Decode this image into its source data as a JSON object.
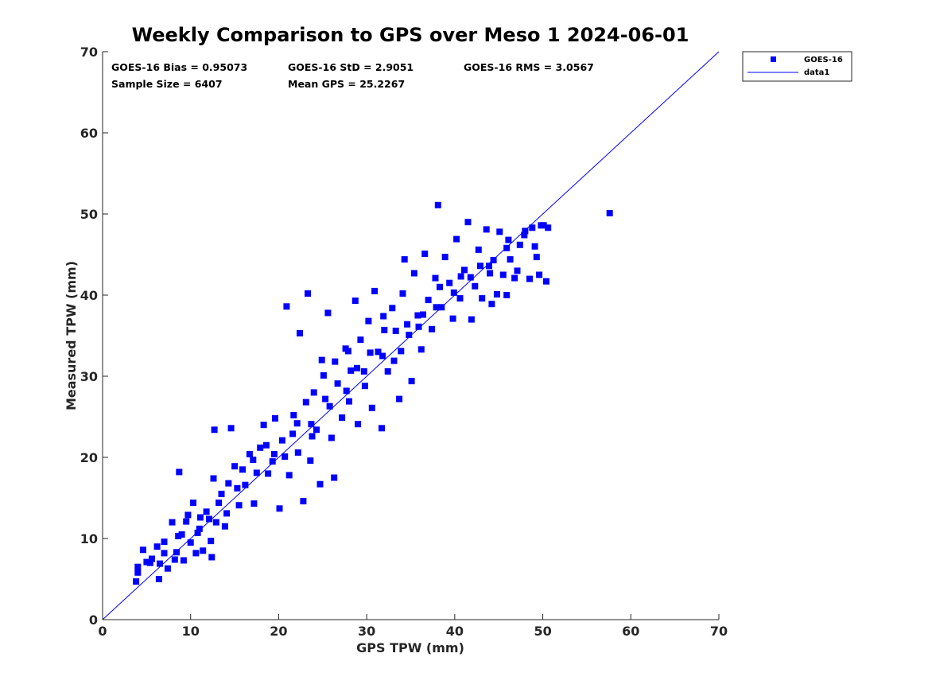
{
  "chart_data": {
    "type": "scatter",
    "title": "Weekly Comparison to GPS over Meso 1 2024-06-01",
    "xlabel": "GPS TPW (mm)",
    "ylabel": "Measured TPW (mm)",
    "xlim": [
      0,
      70
    ],
    "ylim": [
      0,
      70
    ],
    "xticks": [
      "0",
      "10",
      "20",
      "30",
      "40",
      "50",
      "60",
      "70"
    ],
    "yticks": [
      "0",
      "10",
      "20",
      "30",
      "40",
      "50",
      "60",
      "70"
    ],
    "grid": false,
    "legend_position": "outside-top-right",
    "stats": {
      "bias": "GOES-16 Bias = 0.95073",
      "std": "GOES-16 StD = 2.9051",
      "rms": "GOES-16 RMS = 3.0567",
      "sample_size": "Sample Size = 6407",
      "mean_gps": "Mean GPS = 25.2267"
    },
    "series": [
      {
        "name": "GOES-16",
        "kind": "scatter",
        "marker": "square",
        "color": "#0000ff",
        "points": [
          [
            3.8,
            4.7
          ],
          [
            4.0,
            6.5
          ],
          [
            4.0,
            5.8
          ],
          [
            4.6,
            8.6
          ],
          [
            5.0,
            7.1
          ],
          [
            5.4,
            7.0
          ],
          [
            6.2,
            9.0
          ],
          [
            6.4,
            5.0
          ],
          [
            6.5,
            6.9
          ],
          [
            7.0,
            8.2
          ],
          [
            7.4,
            6.3
          ],
          [
            7.9,
            12.0
          ],
          [
            8.4,
            8.3
          ],
          [
            8.6,
            10.3
          ],
          [
            8.7,
            18.2
          ],
          [
            9.2,
            7.3
          ],
          [
            9.5,
            12.1
          ],
          [
            10.0,
            9.5
          ],
          [
            10.3,
            14.4
          ],
          [
            10.6,
            8.2
          ],
          [
            11.0,
            11.2
          ],
          [
            11.4,
            8.5
          ],
          [
            11.8,
            13.3
          ],
          [
            12.3,
            9.7
          ],
          [
            12.4,
            7.7
          ],
          [
            12.6,
            17.4
          ],
          [
            12.7,
            23.4
          ],
          [
            12.9,
            12.0
          ],
          [
            13.5,
            15.5
          ],
          [
            13.9,
            11.5
          ],
          [
            14.3,
            16.8
          ],
          [
            14.6,
            23.6
          ],
          [
            15.0,
            18.9
          ],
          [
            15.5,
            14.1
          ],
          [
            16.2,
            16.6
          ],
          [
            16.7,
            20.4
          ],
          [
            17.2,
            14.3
          ],
          [
            17.9,
            21.2
          ],
          [
            18.3,
            24.0
          ],
          [
            18.8,
            18.0
          ],
          [
            19.3,
            19.5
          ],
          [
            19.6,
            24.8
          ],
          [
            20.1,
            13.7
          ],
          [
            20.4,
            22.1
          ],
          [
            20.9,
            38.6
          ],
          [
            21.2,
            17.8
          ],
          [
            21.7,
            25.2
          ],
          [
            22.2,
            20.6
          ],
          [
            22.4,
            35.3
          ],
          [
            22.8,
            14.6
          ],
          [
            23.1,
            26.8
          ],
          [
            23.3,
            40.2
          ],
          [
            23.6,
            19.6
          ],
          [
            24.0,
            28.0
          ],
          [
            24.3,
            23.4
          ],
          [
            24.7,
            16.7
          ],
          [
            24.9,
            32.0
          ],
          [
            25.3,
            27.2
          ],
          [
            25.6,
            37.8
          ],
          [
            26.0,
            22.4
          ],
          [
            26.3,
            17.5
          ],
          [
            26.7,
            29.1
          ],
          [
            27.2,
            24.9
          ],
          [
            27.6,
            33.4
          ],
          [
            28.0,
            26.9
          ],
          [
            28.2,
            30.7
          ],
          [
            28.7,
            39.3
          ],
          [
            29.0,
            24.1
          ],
          [
            29.3,
            34.5
          ],
          [
            29.8,
            28.8
          ],
          [
            30.2,
            36.8
          ],
          [
            30.6,
            26.1
          ],
          [
            30.9,
            40.5
          ],
          [
            31.3,
            33.0
          ],
          [
            31.7,
            23.6
          ],
          [
            32.0,
            35.7
          ],
          [
            32.4,
            30.6
          ],
          [
            32.9,
            38.4
          ],
          [
            33.1,
            31.9
          ],
          [
            33.7,
            27.2
          ],
          [
            34.1,
            40.2
          ],
          [
            34.3,
            44.4
          ],
          [
            34.8,
            35.1
          ],
          [
            35.1,
            29.4
          ],
          [
            35.4,
            42.7
          ],
          [
            35.8,
            37.5
          ],
          [
            36.2,
            33.3
          ],
          [
            36.6,
            45.1
          ],
          [
            37.0,
            39.4
          ],
          [
            37.4,
            35.8
          ],
          [
            37.8,
            42.1
          ],
          [
            38.1,
            51.1
          ],
          [
            38.5,
            38.5
          ],
          [
            38.9,
            44.7
          ],
          [
            39.4,
            41.5
          ],
          [
            39.8,
            37.1
          ],
          [
            40.2,
            46.9
          ],
          [
            40.6,
            39.6
          ],
          [
            41.1,
            43.1
          ],
          [
            41.5,
            49.0
          ],
          [
            41.9,
            37.0
          ],
          [
            42.3,
            41.1
          ],
          [
            42.7,
            45.6
          ],
          [
            43.1,
            39.6
          ],
          [
            43.6,
            48.1
          ],
          [
            44.0,
            42.7
          ],
          [
            44.4,
            44.3
          ],
          [
            44.8,
            40.1
          ],
          [
            45.1,
            47.8
          ],
          [
            45.5,
            42.5
          ],
          [
            45.9,
            40.0
          ],
          [
            46.3,
            44.4
          ],
          [
            46.8,
            42.1
          ],
          [
            47.4,
            46.2
          ],
          [
            48.0,
            47.9
          ],
          [
            48.5,
            42.0
          ],
          [
            48.8,
            48.3
          ],
          [
            49.3,
            44.7
          ],
          [
            49.6,
            42.5
          ],
          [
            50.1,
            48.6
          ],
          [
            50.4,
            41.7
          ],
          [
            50.6,
            48.3
          ],
          [
            57.6,
            50.1
          ],
          [
            5.6,
            7.5
          ],
          [
            7.0,
            9.6
          ],
          [
            9.0,
            10.5
          ],
          [
            11.1,
            12.6
          ],
          [
            13.2,
            14.4
          ],
          [
            15.3,
            16.2
          ],
          [
            17.5,
            18.1
          ],
          [
            19.5,
            20.4
          ],
          [
            21.6,
            22.9
          ],
          [
            23.7,
            24.1
          ],
          [
            25.8,
            26.3
          ],
          [
            27.7,
            28.2
          ],
          [
            29.7,
            30.6
          ],
          [
            31.8,
            32.5
          ],
          [
            33.9,
            33.1
          ],
          [
            35.9,
            36.1
          ],
          [
            37.9,
            38.5
          ],
          [
            39.9,
            40.3
          ],
          [
            41.8,
            42.2
          ],
          [
            43.9,
            43.6
          ],
          [
            45.9,
            45.8
          ],
          [
            47.9,
            47.4
          ],
          [
            49.8,
            48.6
          ],
          [
            8.2,
            7.4
          ],
          [
            9.7,
            12.9
          ],
          [
            10.8,
            10.7
          ],
          [
            12.1,
            12.4
          ],
          [
            14.1,
            13.1
          ],
          [
            15.9,
            18.5
          ],
          [
            17.1,
            19.7
          ],
          [
            18.6,
            21.5
          ],
          [
            20.7,
            20.1
          ],
          [
            22.1,
            24.2
          ],
          [
            23.8,
            22.6
          ],
          [
            25.1,
            30.1
          ],
          [
            26.4,
            31.8
          ],
          [
            27.9,
            33.1
          ],
          [
            28.9,
            31.0
          ],
          [
            30.4,
            32.9
          ],
          [
            31.9,
            37.4
          ],
          [
            33.3,
            35.6
          ],
          [
            34.6,
            36.4
          ],
          [
            36.4,
            37.6
          ],
          [
            38.3,
            41.0
          ],
          [
            40.7,
            42.3
          ],
          [
            42.9,
            43.6
          ],
          [
            44.2,
            38.9
          ],
          [
            46.1,
            46.8
          ],
          [
            47.1,
            43.0
          ],
          [
            49.1,
            46.0
          ]
        ]
      },
      {
        "name": "data1",
        "kind": "line",
        "color": "#0000ff",
        "x": [
          0,
          70
        ],
        "y": [
          0,
          70
        ]
      }
    ]
  }
}
